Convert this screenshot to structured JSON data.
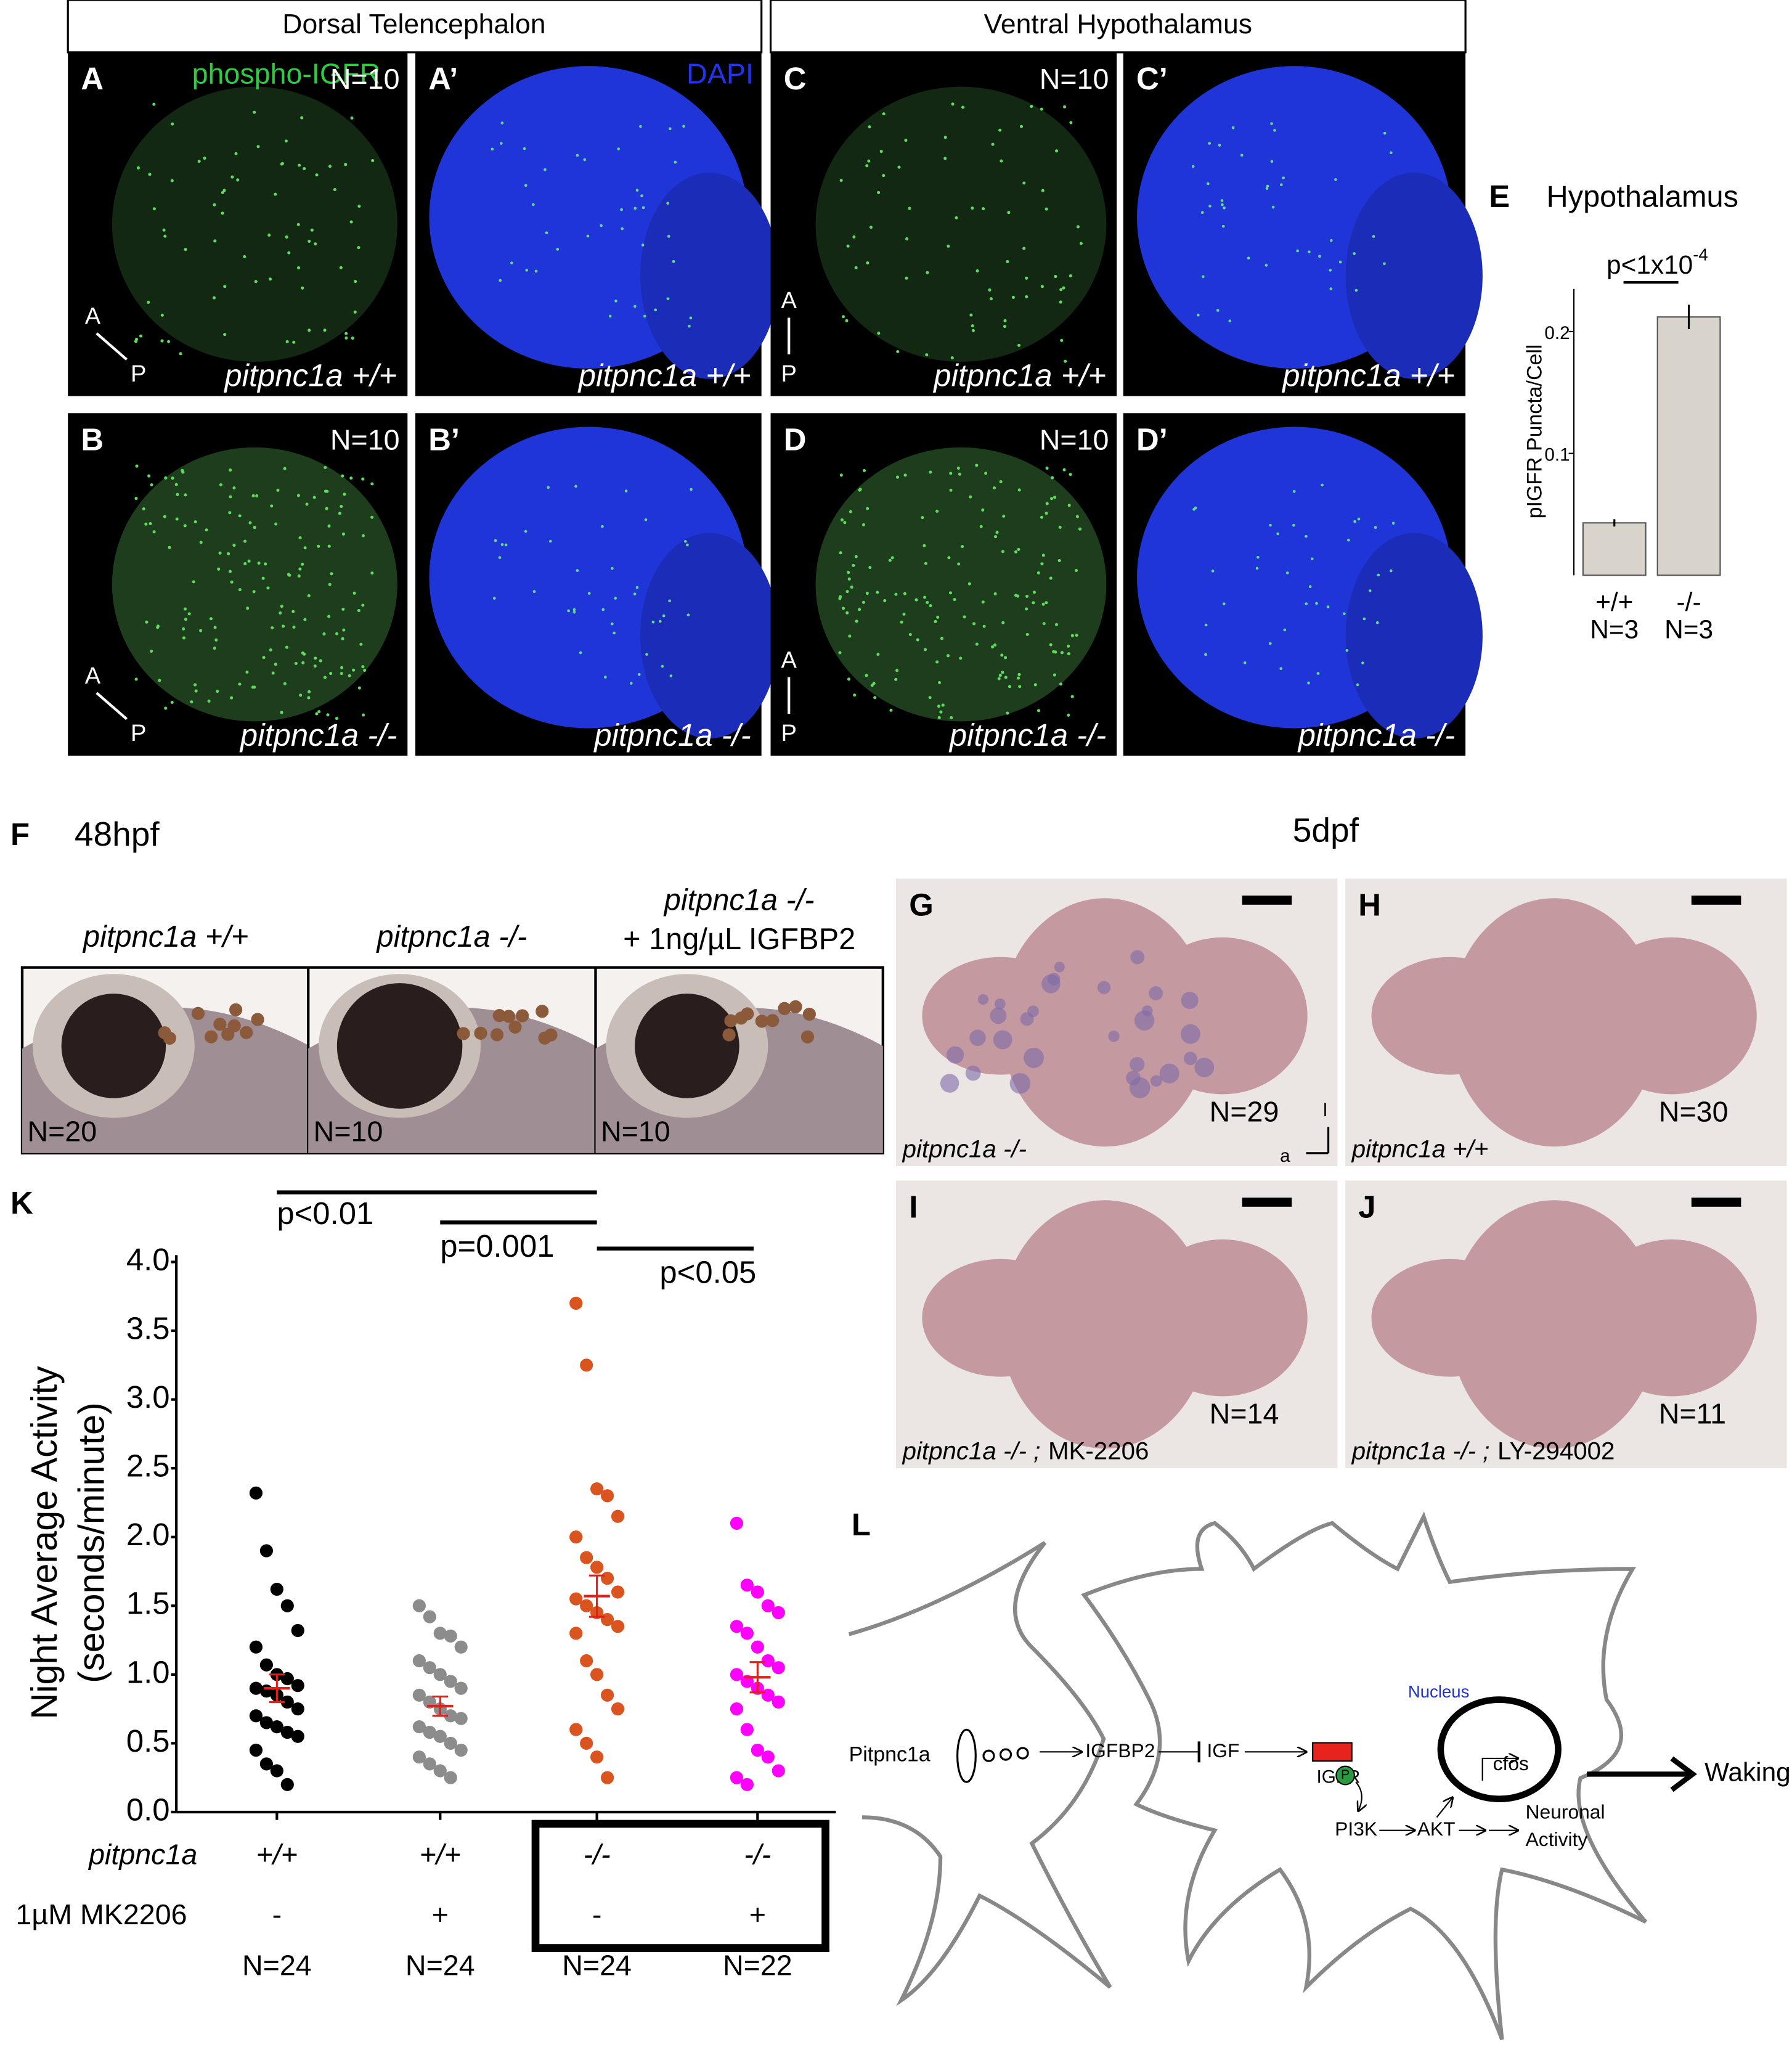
{
  "headers": {
    "dorsal": "Dorsal Telencephalon",
    "ventral": "Ventral Hypothalamus"
  },
  "micrographs": [
    {
      "letter": "A",
      "stain": "phospho-IGFR",
      "n": "N=10",
      "genotype": "pitpnc1a +/+",
      "axis": [
        "A",
        "P"
      ]
    },
    {
      "letter": "A’",
      "stain": "DAPI",
      "genotype": "pitpnc1a +/+"
    },
    {
      "letter": "B",
      "n": "N=10",
      "genotype": "pitpnc1a -/-",
      "axis": [
        "A",
        "P"
      ]
    },
    {
      "letter": "B’",
      "genotype": "pitpnc1a -/-"
    },
    {
      "letter": "C",
      "n": "N=10",
      "genotype": "pitpnc1a +/+",
      "axis": [
        "A",
        "P"
      ]
    },
    {
      "letter": "C’",
      "genotype": "pitpnc1a +/+"
    },
    {
      "letter": "D",
      "n": "N=10",
      "genotype": "pitpnc1a -/-",
      "axis": [
        "A",
        "P"
      ]
    },
    {
      "letter": "D’",
      "genotype": "pitpnc1a -/-"
    }
  ],
  "panel_f": {
    "letter": "F",
    "stage": "48hpf",
    "images": [
      {
        "genotype": "pitpnc1a +/+",
        "n": "N=20"
      },
      {
        "genotype": "pitpnc1a -/-",
        "n": "N=10"
      },
      {
        "genotype": "pitpnc1a -/-",
        "treatment": "+ 1ng/µL IGFBP2",
        "n": "N=10"
      }
    ]
  },
  "panel_gj": {
    "stage": "5dpf",
    "axes": [
      "l",
      "a"
    ],
    "images": [
      {
        "letter": "G",
        "genotype": "pitpnc1a -/-",
        "n": "N=29"
      },
      {
        "letter": "H",
        "genotype": "pitpnc1a +/+",
        "n": "N=30"
      },
      {
        "letter": "I",
        "genotype": "pitpnc1a -/- ;",
        "treatment": "MK-2206",
        "n": "N=14"
      },
      {
        "letter": "J",
        "genotype": "pitpnc1a -/- ;",
        "treatment": "LY-294002",
        "n": "N=11"
      }
    ]
  },
  "chart_data": [
    {
      "type": "bar",
      "letter": "E",
      "title": "Hypothalamus",
      "ylabel": "pIGFR Puncta/Cell",
      "categories": [
        "+/+",
        "-/-"
      ],
      "n_labels": [
        "N=3",
        "N=3"
      ],
      "values": [
        0.043,
        0.212
      ],
      "errors": [
        0.003,
        0.01
      ],
      "color": "#d8d4cc",
      "ylim": [
        0,
        0.235
      ],
      "yticks": [
        0.1,
        0.2
      ],
      "annotation": {
        "label": "p<1x10",
        "exponent": "-4"
      }
    },
    {
      "type": "strip",
      "letter": "K",
      "ylabel": [
        "Night Average Activity",
        "(seconds/minute)"
      ],
      "row_labels": [
        "pitpnc1a",
        "1µM MK2206"
      ],
      "ylim": [
        0,
        4.05
      ],
      "yticks": [
        {
          "value": 0,
          "label": "0.0"
        },
        0.5,
        {
          "value": 1,
          "label": "1.0"
        },
        1.5,
        {
          "value": 2,
          "label": "2.0"
        },
        2.5,
        {
          "value": 3,
          "label": "3.0"
        },
        3.5,
        {
          "value": 4,
          "label": "4.0"
        }
      ],
      "annotations": [
        "p<0.01",
        "p=0.001",
        "p<0.05"
      ],
      "groups": [
        {
          "genotype": "+/+",
          "treatment": "-",
          "n": "N=24",
          "color": "#000000",
          "mean": 0.9,
          "error": 0.1,
          "values": [
            2.32,
            1.9,
            1.62,
            1.5,
            1.32,
            1.2,
            1.07,
            1.0,
            0.97,
            0.92,
            0.9,
            0.88,
            0.85,
            0.8,
            0.75,
            0.7,
            0.65,
            0.62,
            0.58,
            0.55,
            0.45,
            0.35,
            0.3,
            0.2
          ]
        },
        {
          "genotype": "+/+",
          "treatment": "+",
          "n": "N=24",
          "color": "#8c8c8c",
          "mean": 0.77,
          "error": 0.07,
          "values": [
            1.5,
            1.42,
            1.3,
            1.28,
            1.2,
            1.1,
            1.05,
            1.0,
            0.95,
            0.9,
            0.85,
            0.8,
            0.75,
            0.7,
            0.68,
            0.62,
            0.58,
            0.55,
            0.5,
            0.45,
            0.4,
            0.35,
            0.3,
            0.25
          ]
        },
        {
          "genotype": "-/-",
          "treatment": "-",
          "n": "N=24",
          "color": "#d9541e",
          "mean": 1.57,
          "error": 0.15,
          "values": [
            3.7,
            3.25,
            2.35,
            2.3,
            2.15,
            2.0,
            1.85,
            1.78,
            1.7,
            1.6,
            1.55,
            1.5,
            1.45,
            1.4,
            1.35,
            1.3,
            1.1,
            1.0,
            0.85,
            0.75,
            0.6,
            0.5,
            0.4,
            0.25
          ]
        },
        {
          "genotype": "-/-",
          "treatment": "+",
          "n": "N=22",
          "color": "#ff00ff",
          "mean": 0.98,
          "error": 0.11,
          "values": [
            2.1,
            1.65,
            1.6,
            1.5,
            1.45,
            1.35,
            1.3,
            1.2,
            1.1,
            1.05,
            1.0,
            0.95,
            0.9,
            0.85,
            0.8,
            0.75,
            0.6,
            0.45,
            0.4,
            0.3,
            0.25,
            0.2
          ]
        }
      ]
    }
  ],
  "diagram": {
    "letter": "L",
    "pitpnc1a": "Pitpnc1a",
    "igfbp2": "IGFBP2",
    "igf": "IGF",
    "igfr": "IGFR",
    "p": "P",
    "pi3k": "PI3K",
    "akt": "AKT",
    "nucleus": "Nucleus",
    "cfos": "cfos",
    "activity": [
      "Neuronal",
      "Activity"
    ],
    "waking": "Waking"
  }
}
